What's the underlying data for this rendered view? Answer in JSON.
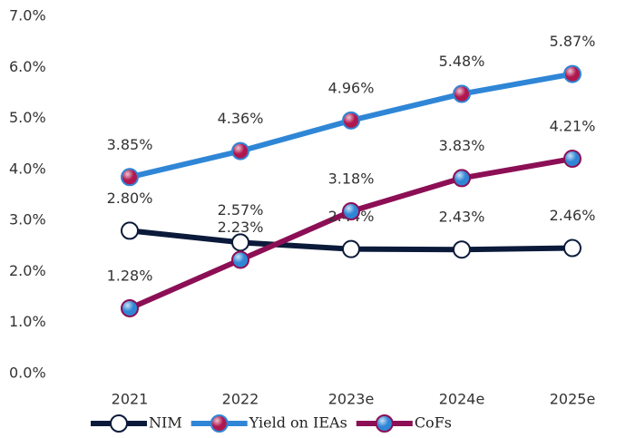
{
  "chart_data": {
    "type": "line",
    "categories": [
      "2021",
      "2022",
      "2023e",
      "2024e",
      "2025e"
    ],
    "series": [
      {
        "name": "NIM",
        "color": "#0b1a3a",
        "marker_color": "#ffffff",
        "values": [
          2.8,
          2.57,
          2.44,
          2.43,
          2.46
        ],
        "value_labels": [
          "2.80%",
          "2.57%",
          "2.44%",
          "2.43%",
          "2.46%"
        ]
      },
      {
        "name": "Yield on IEAs",
        "color": "#2f86d6",
        "marker_color": "#b0174f",
        "values": [
          3.85,
          4.36,
          4.96,
          5.48,
          5.87
        ],
        "value_labels": [
          "3.85%",
          "4.36%",
          "4.96%",
          "5.48%",
          "5.87%"
        ]
      },
      {
        "name": "CoFs",
        "color": "#8c0f55",
        "marker_color": "#2f86d6",
        "values": [
          1.28,
          2.23,
          3.18,
          3.83,
          4.21
        ],
        "value_labels": [
          "1.28%",
          "2.23%",
          "3.18%",
          "3.83%",
          "4.21%"
        ]
      }
    ],
    "ylim": [
      0,
      7
    ],
    "yticks": [
      {
        "value": 0,
        "label": "0.0%"
      },
      {
        "value": 1,
        "label": "1.0%"
      },
      {
        "value": 2,
        "label": "2.0%"
      },
      {
        "value": 3,
        "label": "3.0%"
      },
      {
        "value": 4,
        "label": "4.0%"
      },
      {
        "value": 5,
        "label": "5.0%"
      },
      {
        "value": 6,
        "label": "6.0%"
      },
      {
        "value": 7,
        "label": "7.0%"
      }
    ],
    "grid": false,
    "legend": "bottom"
  }
}
